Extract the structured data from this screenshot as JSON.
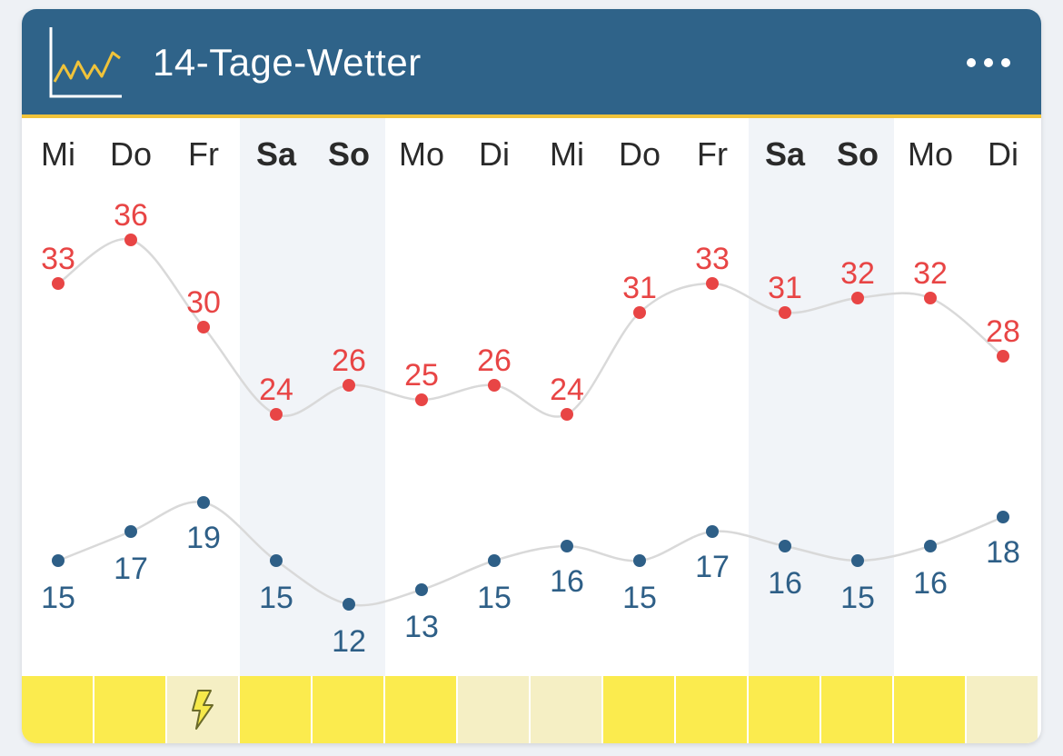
{
  "widget": {
    "title": "14-Tage-Wetter",
    "menu_icon": "more-horizontal-icon",
    "logo_icon": "line-chart-icon"
  },
  "colors": {
    "header_bg": "#2f6389",
    "accent": "#f0c33a",
    "max_temp": "#e84545",
    "min_temp": "#2e5f87",
    "weekend_bg": "#f1f4f8",
    "sun_strip": "#fbeb4e",
    "cloud_strip": "#f5efc4"
  },
  "days": [
    {
      "label": "Mi",
      "weekend": false,
      "max": 33,
      "min": 15,
      "condition": "sunny",
      "icon": ""
    },
    {
      "label": "Do",
      "weekend": false,
      "max": 36,
      "min": 17,
      "condition": "sunny",
      "icon": ""
    },
    {
      "label": "Fr",
      "weekend": false,
      "max": 30,
      "min": 19,
      "condition": "thunder",
      "icon": "lightning-icon"
    },
    {
      "label": "Sa",
      "weekend": true,
      "max": 24,
      "min": 15,
      "condition": "sunny",
      "icon": ""
    },
    {
      "label": "So",
      "weekend": true,
      "max": 26,
      "min": 12,
      "condition": "sunny",
      "icon": ""
    },
    {
      "label": "Mo",
      "weekend": false,
      "max": 25,
      "min": 13,
      "condition": "sunny",
      "icon": ""
    },
    {
      "label": "Di",
      "weekend": false,
      "max": 26,
      "min": 15,
      "condition": "light",
      "icon": ""
    },
    {
      "label": "Mi",
      "weekend": false,
      "max": 24,
      "min": 16,
      "condition": "light",
      "icon": ""
    },
    {
      "label": "Do",
      "weekend": false,
      "max": 31,
      "min": 15,
      "condition": "sunny",
      "icon": ""
    },
    {
      "label": "Fr",
      "weekend": false,
      "max": 33,
      "min": 17,
      "condition": "sunny",
      "icon": ""
    },
    {
      "label": "Sa",
      "weekend": true,
      "max": 31,
      "min": 16,
      "condition": "sunny",
      "icon": ""
    },
    {
      "label": "So",
      "weekend": true,
      "max": 32,
      "min": 15,
      "condition": "sunny",
      "icon": ""
    },
    {
      "label": "Mo",
      "weekend": false,
      "max": 32,
      "min": 16,
      "condition": "sunny",
      "icon": ""
    },
    {
      "label": "Di",
      "weekend": false,
      "max": 28,
      "min": 18,
      "condition": "light",
      "icon": ""
    }
  ],
  "chart_data": {
    "type": "line",
    "categories": [
      "Mi",
      "Do",
      "Fr",
      "Sa",
      "So",
      "Mo",
      "Di",
      "Mi",
      "Do",
      "Fr",
      "Sa",
      "So",
      "Mo",
      "Di"
    ],
    "series": [
      {
        "values": [
          33,
          36,
          30,
          24,
          26,
          25,
          26,
          24,
          31,
          33,
          31,
          32,
          32,
          28
        ]
      },
      {
        "values": [
          15,
          17,
          19,
          15,
          12,
          13,
          15,
          16,
          15,
          17,
          16,
          15,
          16,
          18
        ]
      }
    ],
    "grid": false,
    "legend": "none"
  }
}
